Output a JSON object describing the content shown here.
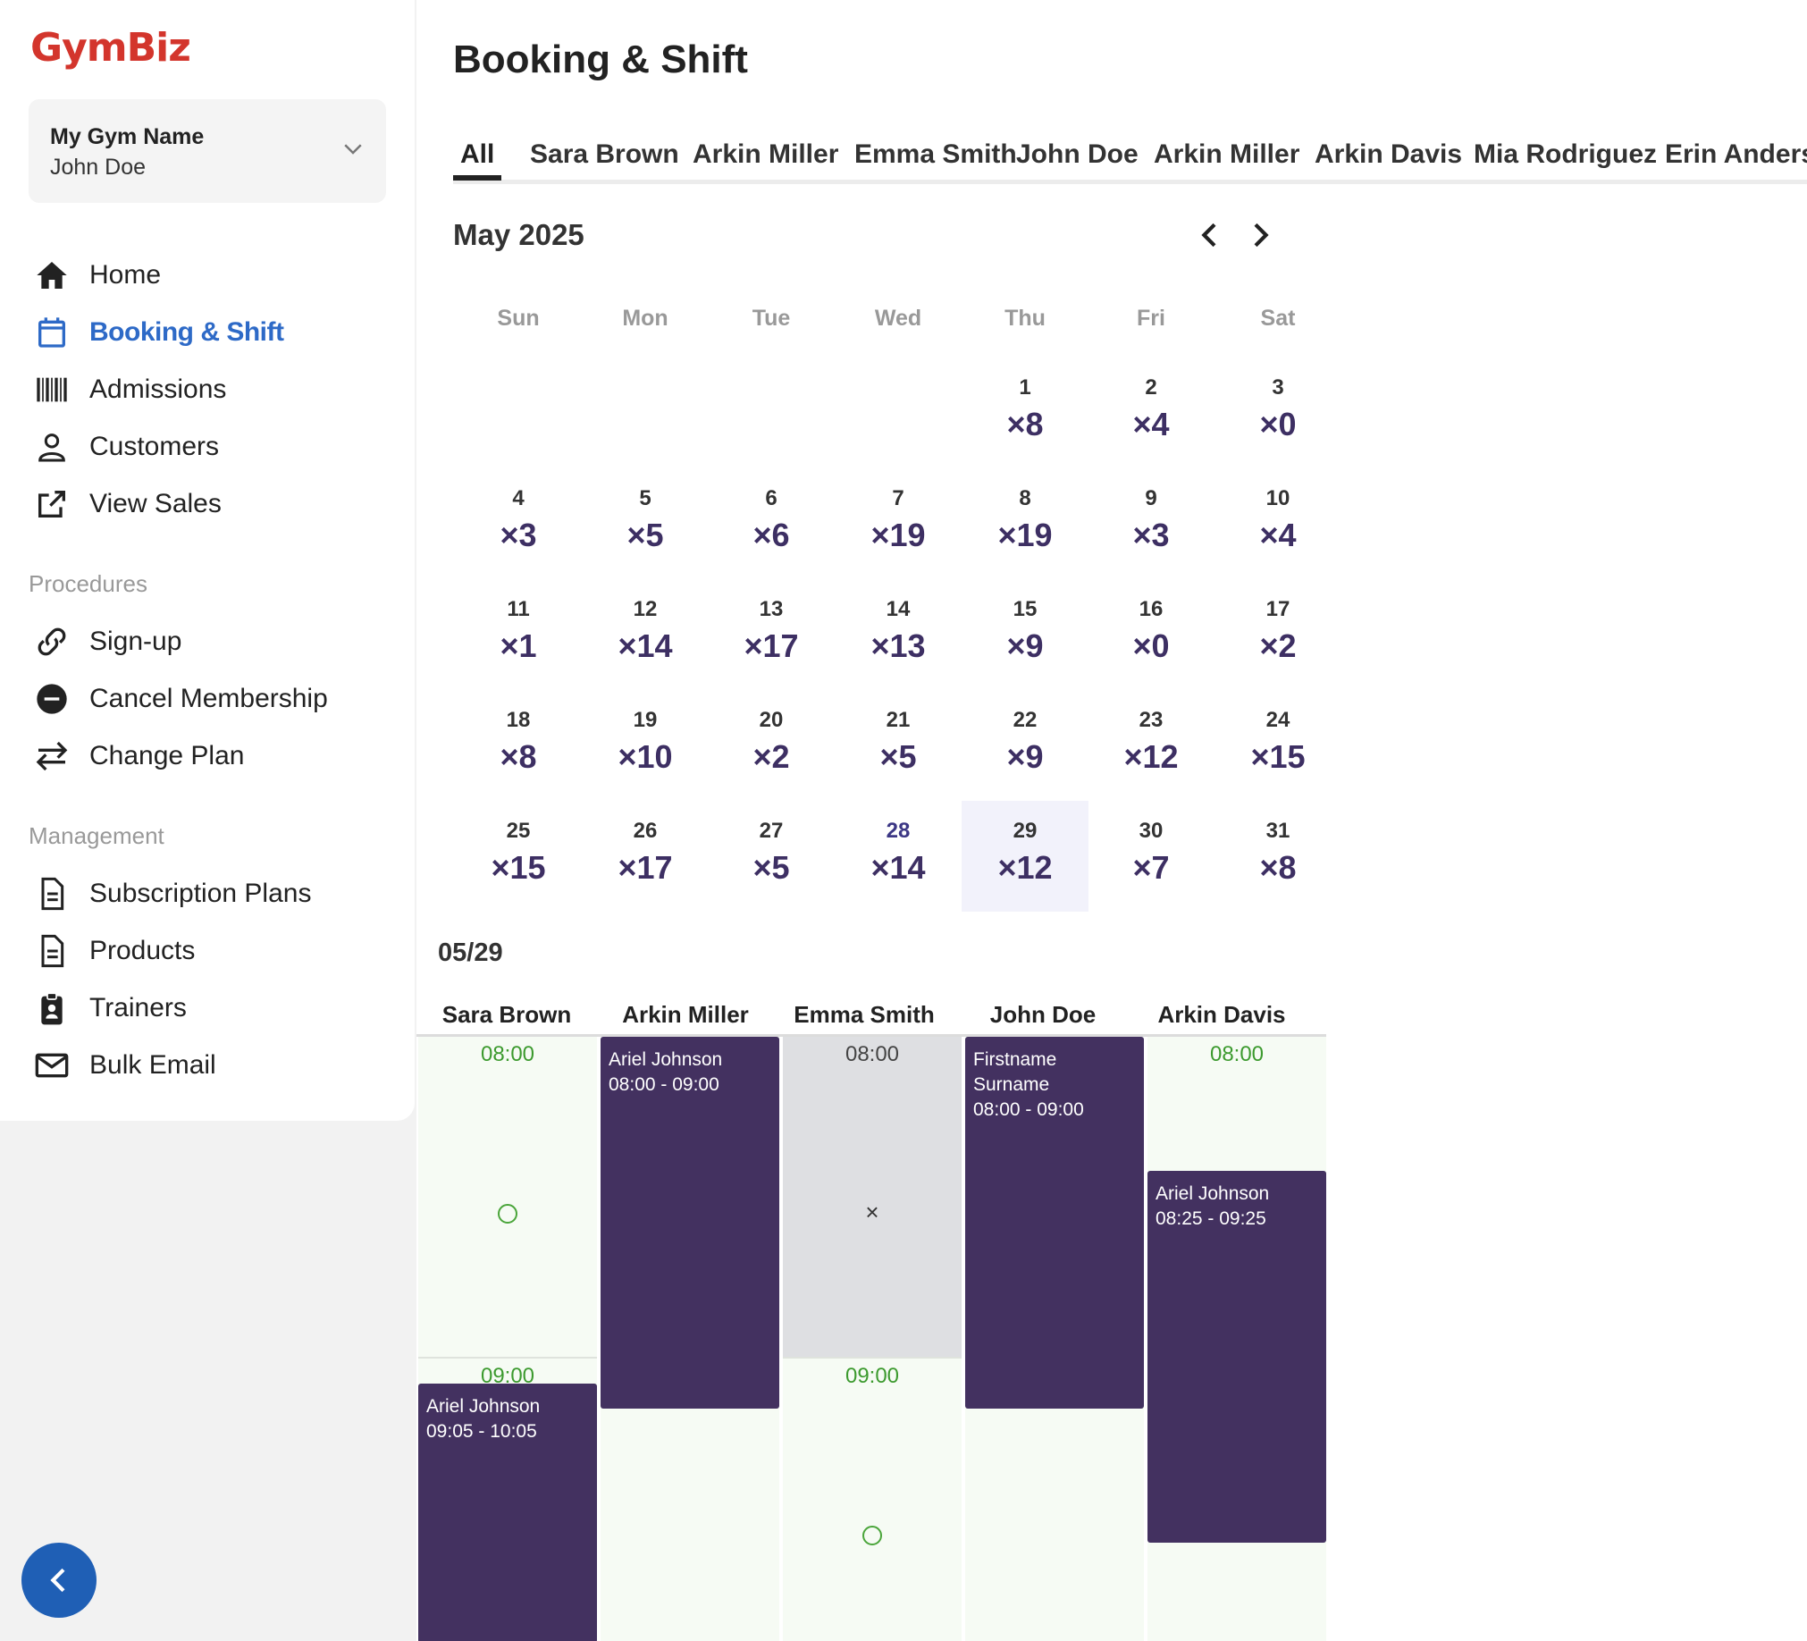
{
  "app": {
    "logo": "GymBiz"
  },
  "gym": {
    "name": "My Gym Name",
    "user": "John Doe"
  },
  "nav": {
    "home": "Home",
    "booking": "Booking & Shift",
    "admissions": "Admissions",
    "customers": "Customers",
    "view_sales": "View Sales"
  },
  "procedures": {
    "label": "Procedures",
    "signup": "Sign-up",
    "cancel": "Cancel Membership",
    "change": "Change Plan"
  },
  "management": {
    "label": "Management",
    "plans": "Subscription Plans",
    "products": "Products",
    "trainers": "Trainers",
    "bulk_email": "Bulk Email"
  },
  "page": {
    "title": "Booking & Shift"
  },
  "tabs": [
    "All",
    "Sara Brown",
    "Arkin Miller",
    "Emma Smith",
    "John Doe",
    "Arkin Miller",
    "Arkin Davis",
    "Mia Rodriguez",
    "Erin Anderson"
  ],
  "calendar": {
    "month": "May 2025",
    "weekdays": [
      "Sun",
      "Mon",
      "Tue",
      "Wed",
      "Thu",
      "Fri",
      "Sat"
    ],
    "days": [
      {
        "d": "1",
        "c": "×8"
      },
      {
        "d": "2",
        "c": "×4"
      },
      {
        "d": "3",
        "c": "×0"
      },
      {
        "d": "4",
        "c": "×3"
      },
      {
        "d": "5",
        "c": "×5"
      },
      {
        "d": "6",
        "c": "×6"
      },
      {
        "d": "7",
        "c": "×19"
      },
      {
        "d": "8",
        "c": "×19"
      },
      {
        "d": "9",
        "c": "×3"
      },
      {
        "d": "10",
        "c": "×4"
      },
      {
        "d": "11",
        "c": "×1"
      },
      {
        "d": "12",
        "c": "×14"
      },
      {
        "d": "13",
        "c": "×17"
      },
      {
        "d": "14",
        "c": "×13"
      },
      {
        "d": "15",
        "c": "×9"
      },
      {
        "d": "16",
        "c": "×0"
      },
      {
        "d": "17",
        "c": "×2"
      },
      {
        "d": "18",
        "c": "×8"
      },
      {
        "d": "19",
        "c": "×10"
      },
      {
        "d": "20",
        "c": "×2"
      },
      {
        "d": "21",
        "c": "×5"
      },
      {
        "d": "22",
        "c": "×9"
      },
      {
        "d": "23",
        "c": "×12"
      },
      {
        "d": "24",
        "c": "×15"
      },
      {
        "d": "25",
        "c": "×15"
      },
      {
        "d": "26",
        "c": "×17"
      },
      {
        "d": "27",
        "c": "×5"
      },
      {
        "d": "28",
        "c": "×14"
      },
      {
        "d": "29",
        "c": "×12"
      },
      {
        "d": "30",
        "c": "×7"
      },
      {
        "d": "31",
        "c": "×8"
      }
    ]
  },
  "schedule": {
    "date": "05/29",
    "trainers": [
      "Sara Brown",
      "Arkin Miller",
      "Emma Smith",
      "John Doe",
      "Arkin Davis"
    ],
    "times": {
      "sara_0800": "08:00",
      "sara_0900": "09:00",
      "emma_0800": "08:00",
      "emma_0900": "09:00",
      "davis_0800": "08:00"
    },
    "cross": "×",
    "events": {
      "sara_1_name": "Ariel Johnson",
      "sara_1_time": "09:05 - 10:05",
      "miller_1_name": "Ariel Johnson",
      "miller_1_time": "08:00 - 09:00",
      "doe_1_name": "Firstname Surname",
      "doe_1_time": "08:00 - 09:00",
      "davis_1_name": "Ariel Johnson",
      "davis_1_time": "08:25 - 09:25"
    }
  }
}
